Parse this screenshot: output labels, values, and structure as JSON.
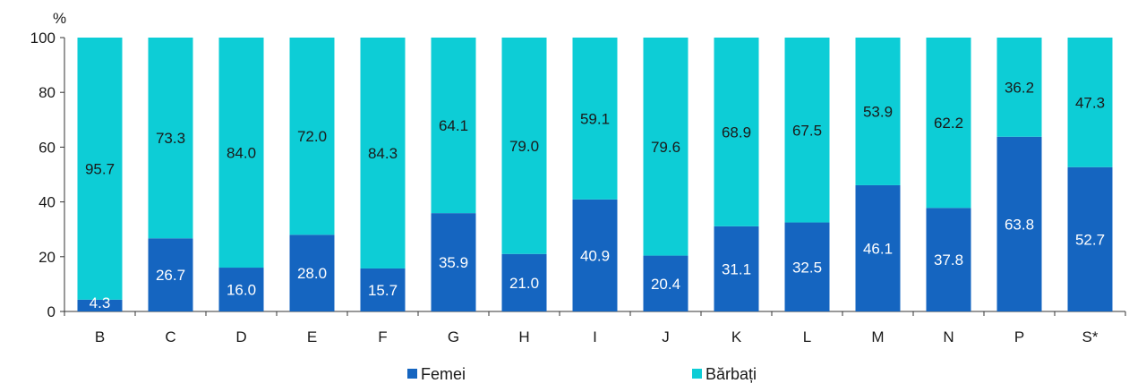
{
  "chart_data": {
    "type": "bar",
    "stacked": true,
    "ylabel": "%",
    "ylim": [
      0,
      100
    ],
    "yticks": [
      0,
      20,
      40,
      60,
      80,
      100
    ],
    "grid": false,
    "legend_position": "bottom",
    "categories": [
      "B",
      "C",
      "D",
      "E",
      "F",
      "G",
      "H",
      "I",
      "J",
      "K",
      "L",
      "M",
      "N",
      "P",
      "S*"
    ],
    "series": [
      {
        "name": "Femei",
        "color": "#1565c0",
        "label_color": "#ffffff",
        "values": [
          4.3,
          26.7,
          16.0,
          28.0,
          15.7,
          35.9,
          21.0,
          40.9,
          20.4,
          31.1,
          32.5,
          46.1,
          37.8,
          63.8,
          52.7
        ],
        "labels": [
          "4.3",
          "26.7",
          "16.0",
          "28.0",
          "15.7",
          "35.9",
          "21.0",
          "40.9",
          "20.4",
          "31.1",
          "32.5",
          "46.1",
          "37.8",
          "63.8",
          "52.7"
        ]
      },
      {
        "name": "Bărbați",
        "color": "#0dcdd6",
        "label_color": "#1a1a1a",
        "values": [
          95.7,
          73.3,
          84.0,
          72.0,
          84.3,
          64.1,
          79.0,
          59.1,
          79.6,
          68.9,
          67.5,
          53.9,
          62.2,
          36.2,
          47.3
        ],
        "labels": [
          "95.7",
          "73.3",
          "84.0",
          "72.0",
          "84.3",
          "64.1",
          "79.0",
          "59.1",
          "79.6",
          "68.9",
          "67.5",
          "53.9",
          "62.2",
          "36.2",
          "47.3"
        ]
      }
    ]
  }
}
